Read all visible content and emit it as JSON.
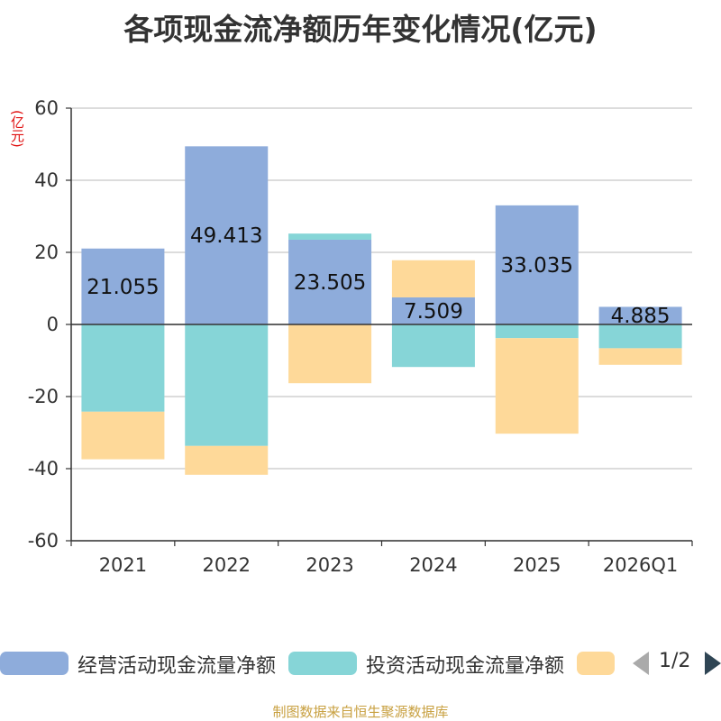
{
  "chart_data": {
    "type": "bar",
    "stacked": true,
    "title": "各项现金流净额历年变化情况(亿元)",
    "ylabel": "(亿元)",
    "ylim": [
      -60,
      60
    ],
    "yticks": [
      60,
      40,
      20,
      0,
      -20,
      -40,
      -60
    ],
    "grid": true,
    "categories": [
      "2021",
      "2022",
      "2023",
      "2024",
      "2025",
      "2026Q1"
    ],
    "series": [
      {
        "name": "经营活动现金流量净额",
        "color": "#8eacdb",
        "values": [
          21.055,
          49.413,
          23.505,
          7.509,
          33.035,
          4.885
        ],
        "labels": [
          "21.055",
          "49.413",
          "23.505",
          "7.509",
          "33.035",
          "4.885"
        ]
      },
      {
        "name": "投资活动现金流量净额",
        "color": "#86d5d7",
        "values": [
          -24.2,
          -33.7,
          1.7,
          -11.8,
          -3.8,
          -6.6
        ]
      },
      {
        "name": "",
        "color": "#fed999",
        "values": [
          -13.2,
          -8.0,
          -16.3,
          10.3,
          -26.5,
          -4.6
        ]
      }
    ]
  },
  "legend": {
    "page": "1/2"
  },
  "source": "制图数据来自恒生聚源数据库"
}
